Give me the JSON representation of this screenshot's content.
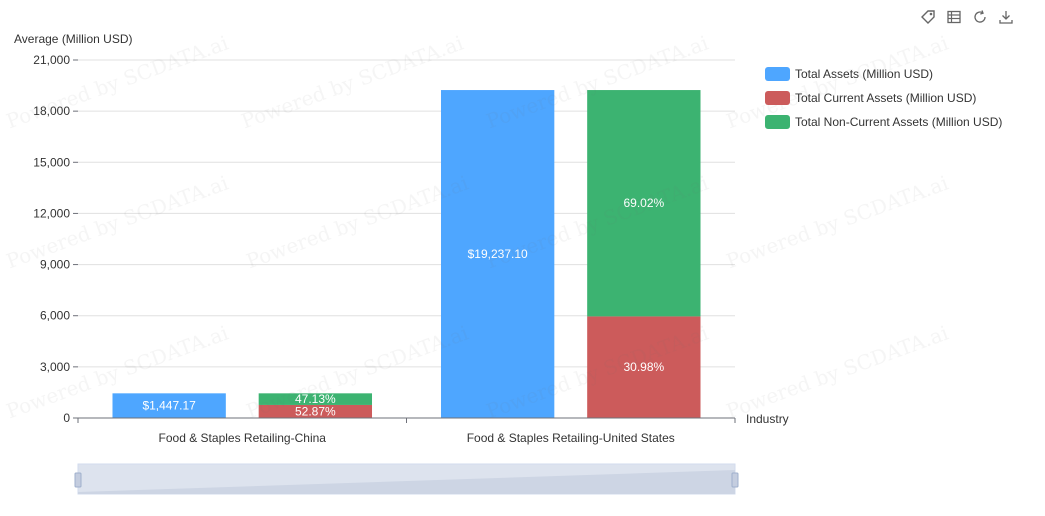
{
  "toolbar": {
    "icons": [
      "tag-icon",
      "data-view-icon",
      "restore-icon",
      "download-icon"
    ]
  },
  "watermark": "Powered by SCDATA.ai",
  "legend": [
    {
      "label": "Total Assets (Million USD)",
      "color": "#4ea6ff"
    },
    {
      "label": "Total Current Assets (Million USD)",
      "color": "#cc5b5b"
    },
    {
      "label": "Total Non-Current Assets (Million USD)",
      "color": "#3cb371"
    }
  ],
  "chart_data": {
    "type": "bar",
    "ylabel": "Average (Million USD)",
    "xlabel": "Industry",
    "ylim": [
      0,
      21000
    ],
    "yticks": [
      0,
      3000,
      6000,
      9000,
      12000,
      15000,
      18000,
      21000
    ],
    "ytick_labels": [
      "0",
      "3,000",
      "6,000",
      "9,000",
      "12,000",
      "15,000",
      "18,000",
      "21,000"
    ],
    "categories": [
      "Food & Staples Retailing-China",
      "Food & Staples Retailing-United States"
    ],
    "series": [
      {
        "name": "Total Assets (Million USD)",
        "stack": "assets",
        "color": "#4ea6ff",
        "values": [
          1447.17,
          19237.1
        ],
        "labels": [
          "$1,447.17",
          "$19,237.10"
        ]
      },
      {
        "name": "Total Current Assets (Million USD)",
        "stack": "breakdown",
        "color": "#cc5b5b",
        "values": [
          765.1,
          5959.7
        ],
        "labels": [
          "52.87%",
          "30.98%"
        ]
      },
      {
        "name": "Total Non-Current Assets (Million USD)",
        "stack": "breakdown",
        "color": "#3cb371",
        "values": [
          682.1,
          13277.4
        ],
        "labels": [
          "47.13%",
          "69.02%"
        ]
      }
    ],
    "grid": true,
    "legend_position": "top-right",
    "datazoom": {
      "start": 0,
      "end": 100
    }
  }
}
